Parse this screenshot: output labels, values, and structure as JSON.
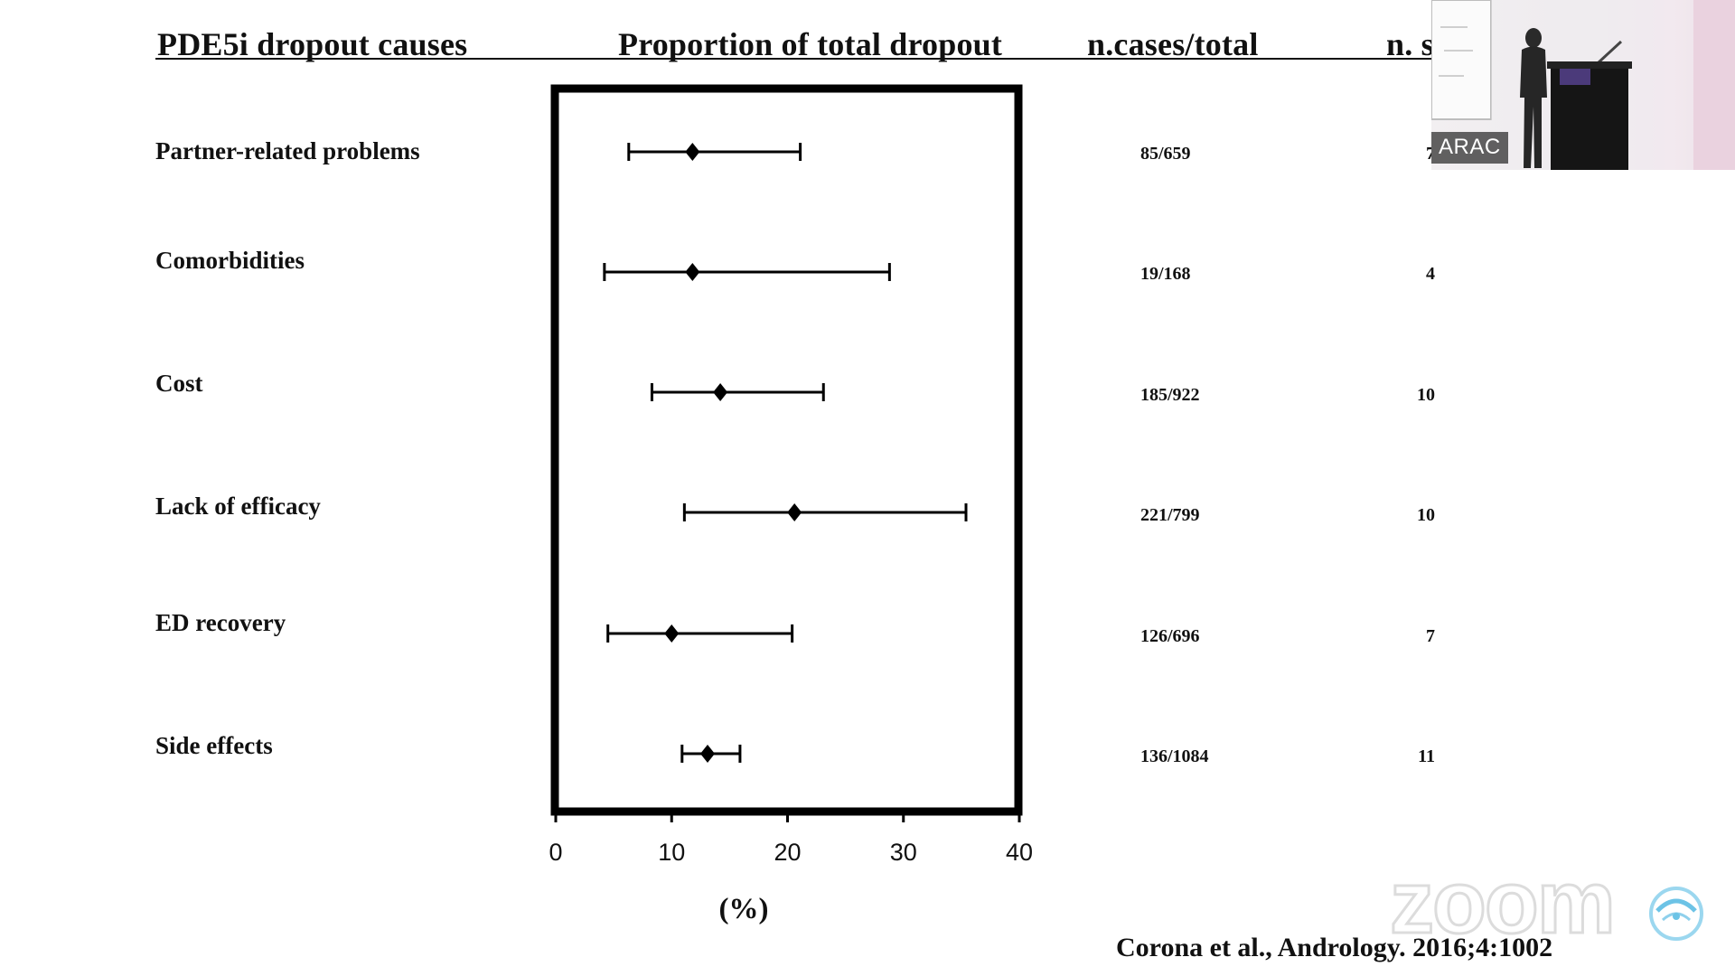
{
  "headers": {
    "causes": "PDE5i dropout causes",
    "proportion": "Proportion of total dropout",
    "cases": "n.cases/total",
    "studies": "n. s"
  },
  "chart_data": {
    "type": "forest",
    "xlim": [
      0,
      40
    ],
    "xticks": [
      0,
      10,
      20,
      30,
      40
    ],
    "xticklabels": [
      "0",
      "10",
      "20",
      "30",
      "40"
    ],
    "xlabel": "(%)",
    "rows": [
      {
        "label": "Partner-related problems",
        "estimate": 11.8,
        "ci_low": 6.3,
        "ci_high": 21.1,
        "cases": "85/659",
        "n_studies": "7"
      },
      {
        "label": "Comorbidities",
        "estimate": 11.8,
        "ci_low": 4.2,
        "ci_high": 28.8,
        "cases": "19/168",
        "n_studies": "4"
      },
      {
        "label": "Cost",
        "estimate": 14.2,
        "ci_low": 8.3,
        "ci_high": 23.1,
        "cases": "185/922",
        "n_studies": "10"
      },
      {
        "label": "Lack of efficacy",
        "estimate": 20.6,
        "ci_low": 11.1,
        "ci_high": 35.4,
        "cases": "221/799",
        "n_studies": "10"
      },
      {
        "label": "ED recovery",
        "estimate": 10.0,
        "ci_low": 4.5,
        "ci_high": 20.4,
        "cases": "126/696",
        "n_studies": "7"
      },
      {
        "label": "Side effects",
        "estimate": 13.1,
        "ci_low": 10.9,
        "ci_high": 15.9,
        "cases": "136/1084",
        "n_studies": "11"
      }
    ]
  },
  "citation": "Corona et al., Andrology. 2016;4:1002",
  "participant": {
    "name": "ARAC"
  },
  "watermark": {
    "text": "zoom"
  }
}
